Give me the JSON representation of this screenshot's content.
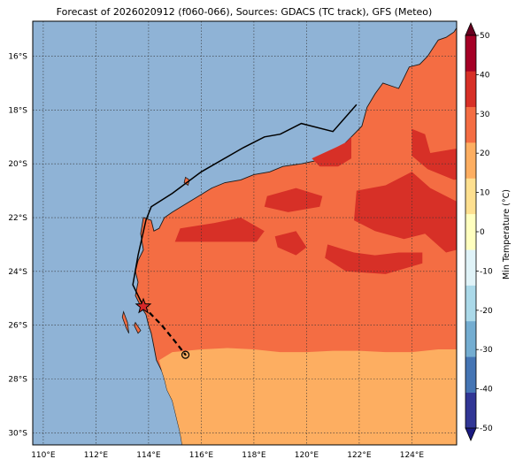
{
  "title": "Forecast of 2026020912 (f060-066), Sources: GDACS (TC track), GFS (Meteo)",
  "map": {
    "lon_range": [
      109.6,
      125.7
    ],
    "lat_range": [
      -30.45,
      -14.7
    ],
    "lon_ticks": [
      110,
      112,
      114,
      116,
      118,
      120,
      122,
      124
    ],
    "lon_tick_labels": [
      "110°E",
      "112°E",
      "114°E",
      "116°E",
      "118°E",
      "120°E",
      "122°E",
      "124°E"
    ],
    "lat_ticks": [
      -16,
      -18,
      -20,
      -22,
      -24,
      -26,
      -28,
      -30
    ],
    "lat_tick_labels": [
      "16°S",
      "18°S",
      "20°S",
      "22°S",
      "24°S",
      "26°S",
      "28°S",
      "30°S"
    ],
    "gridlines": true,
    "ocean_color": "#8fb3d6",
    "coastline_color": "#1a1a1a"
  },
  "fields": {
    "band_30_40_color": "#d73027",
    "band_20_30_color": "#f46d43",
    "band_10_20_color": "#fdae61"
  },
  "tc_track": {
    "past_track": [
      [
        121.9,
        -17.8
      ],
      [
        121.0,
        -18.8
      ],
      [
        119.8,
        -18.5
      ],
      [
        119.0,
        -18.9
      ],
      [
        118.4,
        -19.0
      ],
      [
        117.6,
        -19.4
      ],
      [
        116.0,
        -20.3
      ],
      [
        114.9,
        -21.1
      ],
      [
        114.1,
        -21.6
      ],
      [
        113.9,
        -22.1
      ],
      [
        113.6,
        -23.4
      ],
      [
        113.4,
        -24.5
      ],
      [
        113.8,
        -25.3
      ]
    ],
    "forecast_track": [
      [
        113.8,
        -25.3
      ],
      [
        114.5,
        -26.0
      ],
      [
        115.0,
        -26.6
      ],
      [
        115.4,
        -27.1
      ]
    ],
    "current_position": [
      113.8,
      -25.3
    ],
    "forecast_position": [
      115.4,
      -27.1
    ],
    "current_marker_color": "#d62728"
  },
  "colorbar": {
    "label": "Min Temperature (°C)",
    "ticks": [
      -50,
      -40,
      -30,
      -20,
      -10,
      0,
      10,
      20,
      30,
      40,
      50
    ],
    "range": [
      -50,
      50
    ],
    "extend": "both",
    "colors": [
      "#1a1a80",
      "#313695",
      "#4575b4",
      "#74add1",
      "#abd9e9",
      "#e0f3f8",
      "#ffffbf",
      "#fee090",
      "#fdae61",
      "#f46d43",
      "#d73027",
      "#a50026",
      "#67001f"
    ]
  }
}
